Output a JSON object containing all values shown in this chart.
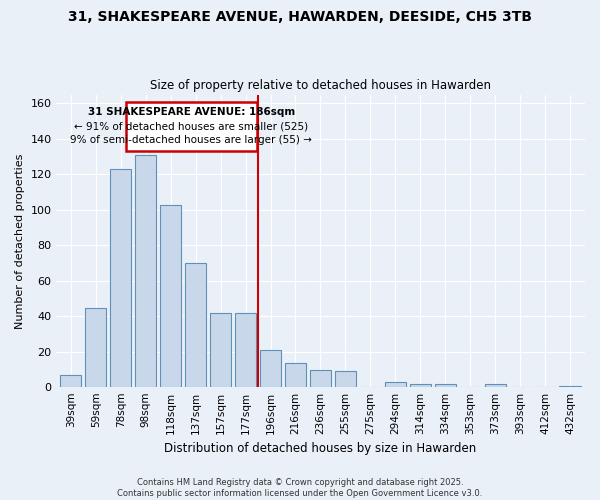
{
  "title": "31, SHAKESPEARE AVENUE, HAWARDEN, DEESIDE, CH5 3TB",
  "subtitle": "Size of property relative to detached houses in Hawarden",
  "xlabel": "Distribution of detached houses by size in Hawarden",
  "ylabel": "Number of detached properties",
  "categories": [
    "39sqm",
    "59sqm",
    "78sqm",
    "98sqm",
    "118sqm",
    "137sqm",
    "157sqm",
    "177sqm",
    "196sqm",
    "216sqm",
    "236sqm",
    "255sqm",
    "275sqm",
    "294sqm",
    "314sqm",
    "334sqm",
    "353sqm",
    "373sqm",
    "393sqm",
    "412sqm",
    "432sqm"
  ],
  "values": [
    7,
    45,
    123,
    131,
    103,
    70,
    42,
    42,
    21,
    14,
    10,
    9,
    0,
    3,
    2,
    2,
    0,
    2,
    0,
    0,
    1
  ],
  "bar_color": "#c8d8ea",
  "bar_edge_color": "#6090b8",
  "vline_color": "#cc0000",
  "annotation_title": "31 SHAKESPEARE AVENUE: 186sqm",
  "annotation_line1": "← 91% of detached houses are smaller (525)",
  "annotation_line2": "9% of semi-detached houses are larger (55) →",
  "annotation_box_color": "#cc0000",
  "ylim": [
    0,
    165
  ],
  "yticks": [
    0,
    20,
    40,
    60,
    80,
    100,
    120,
    140,
    160
  ],
  "background_color": "#eaf0f8",
  "grid_color": "#ffffff",
  "footer_line1": "Contains HM Land Registry data © Crown copyright and database right 2025.",
  "footer_line2": "Contains public sector information licensed under the Open Government Licence v3.0."
}
